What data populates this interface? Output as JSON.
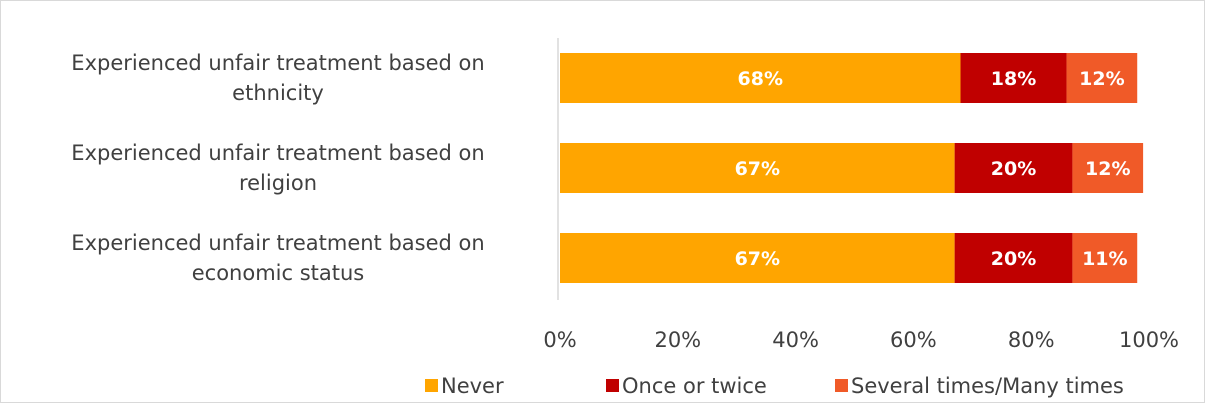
{
  "chart_data": {
    "type": "bar",
    "orientation": "horizontal",
    "stacked": true,
    "percent_stacked": true,
    "title": "",
    "xlabel": "",
    "ylabel": "",
    "xlim": [
      0,
      100
    ],
    "grid": false,
    "legend_position": "bottom",
    "categories": [
      "Experienced unfair treatment based on ethnicity",
      "Experienced unfair treatment based on religion",
      "Experienced unfair treatment based on economic status"
    ],
    "category_lines": [
      [
        "Experienced unfair treatment based on",
        "ethnicity"
      ],
      [
        "Experienced unfair treatment based on",
        "religion"
      ],
      [
        "Experienced unfair treatment based on",
        "economic status"
      ]
    ],
    "x_ticks": [
      "0%",
      "20%",
      "40%",
      "60%",
      "80%",
      "100%"
    ],
    "series": [
      {
        "name": "Never",
        "color": "#FFA500",
        "values": [
          68,
          67,
          67
        ],
        "labels": [
          "68%",
          "67%",
          "67%"
        ]
      },
      {
        "name": "Once or twice",
        "color": "#C00000",
        "values": [
          18,
          20,
          20
        ],
        "labels": [
          "18%",
          "20%",
          "20%"
        ]
      },
      {
        "name": "Several times/Many times",
        "color": "#F05A28",
        "values": [
          12,
          12,
          11
        ],
        "labels": [
          "12%",
          "12%",
          "11%"
        ]
      }
    ]
  }
}
